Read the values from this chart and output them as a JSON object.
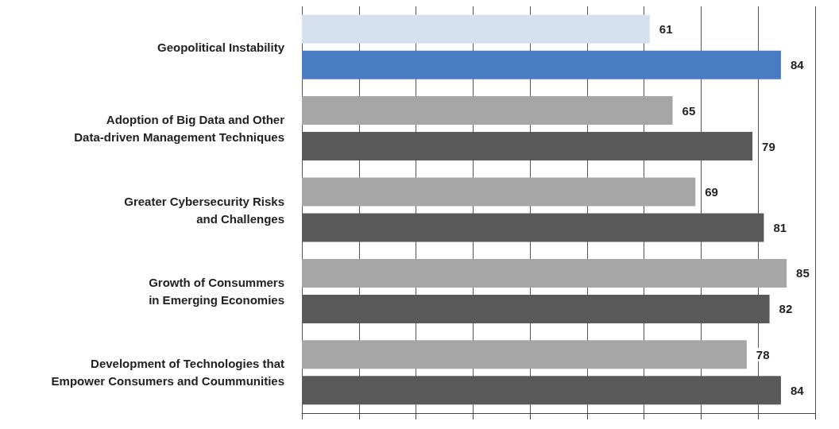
{
  "chart_data": {
    "type": "bar",
    "orientation": "horizontal",
    "categories": [
      "Geopolitical Instability",
      "Adoption of Big Data and Other\nData-driven Management Techniques",
      "Greater Cybersecurity Risks\nand Challenges",
      "Growth of Consummers\nin Emerging Economies",
      "Development of Technologies that\nEmpower Consumers and Coummunities"
    ],
    "series": [
      {
        "colors": [
          "#d5e1ee",
          "#a6a6a6",
          "#a6a6a6",
          "#a6a6a6",
          "#a6a6a6"
        ],
        "values": [
          61,
          65,
          69,
          85,
          78
        ]
      },
      {
        "colors": [
          "#4a7cc3",
          "#595959",
          "#595959",
          "#595959",
          "#595959"
        ],
        "values": [
          84,
          79,
          81,
          82,
          84
        ]
      }
    ],
    "xlim": [
      0,
      90
    ],
    "xticks": [
      {
        "value": 0,
        "label": null
      },
      {
        "value": 10,
        "label": null
      },
      {
        "value": 20,
        "label": null
      },
      {
        "value": 30,
        "label": null
      },
      {
        "value": 40,
        "label": null
      },
      {
        "value": 50,
        "label": null
      },
      {
        "value": 60,
        "label": null
      },
      {
        "value": 70,
        "label": null
      },
      {
        "value": 80,
        "label": null
      },
      {
        "value": 90,
        "label": null
      }
    ],
    "grid": "x",
    "tick_labels": "y",
    "data_labels": true
  }
}
